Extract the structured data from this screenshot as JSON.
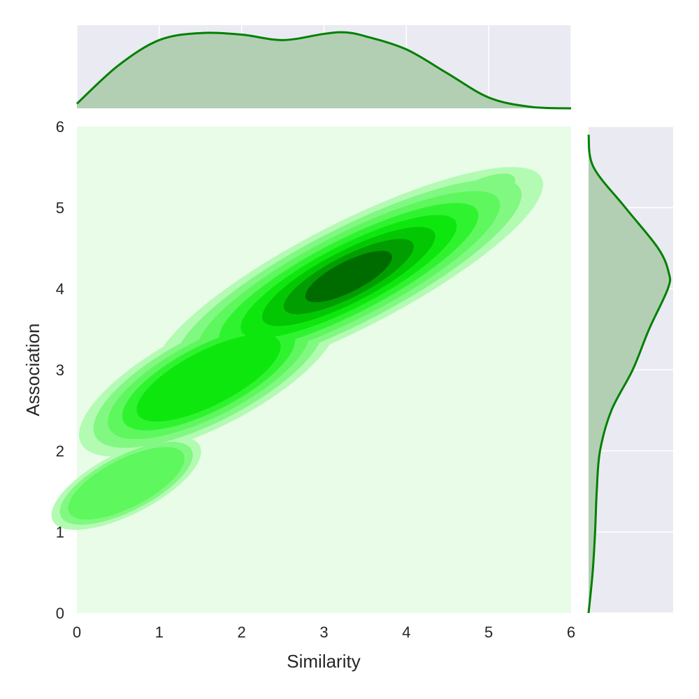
{
  "chart_data": {
    "type": "kde-joint",
    "xlabel": "Similarity",
    "ylabel": "Association",
    "xlim": [
      0,
      6
    ],
    "ylim": [
      0,
      6
    ],
    "xticks": [
      "0",
      "1",
      "2",
      "3",
      "4",
      "5",
      "6"
    ],
    "yticks": [
      "0",
      "1",
      "2",
      "3",
      "4",
      "5",
      "6"
    ],
    "colors": {
      "marginal_line": "#008000",
      "marginal_fill": "#b2cfb4",
      "marginal_background": "#eaeaf2",
      "joint_background": "#e8fce8",
      "contour_levels": [
        "#b3fbb3",
        "#81f881",
        "#5ef75e",
        "#30f330",
        "#0ee70e",
        "#03c703",
        "#019d01",
        "#006c00",
        "#004400"
      ]
    },
    "grid": true,
    "joint_kde": {
      "center": [
        3.3,
        4.15
      ],
      "principal_direction": [
        1.0,
        0.5
      ],
      "components": [
        {
          "center": [
            3.3,
            4.15
          ],
          "weight": 1.0
        },
        {
          "center": [
            1.6,
            2.9
          ],
          "weight": 0.45
        },
        {
          "center": [
            0.6,
            1.6
          ],
          "weight": 0.2
        },
        {
          "center": [
            4.8,
            5.1
          ],
          "weight": 0.15
        }
      ]
    },
    "marginal_x": {
      "x": [
        0,
        0.5,
        1,
        1.5,
        2,
        2.5,
        3,
        3.25,
        3.5,
        4,
        4.5,
        5,
        5.5,
        6
      ],
      "density": [
        0.06,
        0.55,
        0.88,
        0.97,
        0.95,
        0.88,
        0.96,
        0.98,
        0.93,
        0.76,
        0.45,
        0.14,
        0.02,
        0.0
      ]
    },
    "marginal_y": {
      "y": [
        0,
        0.5,
        1,
        1.5,
        2,
        2.5,
        3,
        3.5,
        4,
        4.2,
        4.5,
        5,
        5.5,
        5.9
      ],
      "density": [
        0.0,
        0.05,
        0.08,
        0.1,
        0.14,
        0.28,
        0.54,
        0.74,
        0.97,
        0.98,
        0.85,
        0.45,
        0.06,
        0.0
      ]
    }
  }
}
